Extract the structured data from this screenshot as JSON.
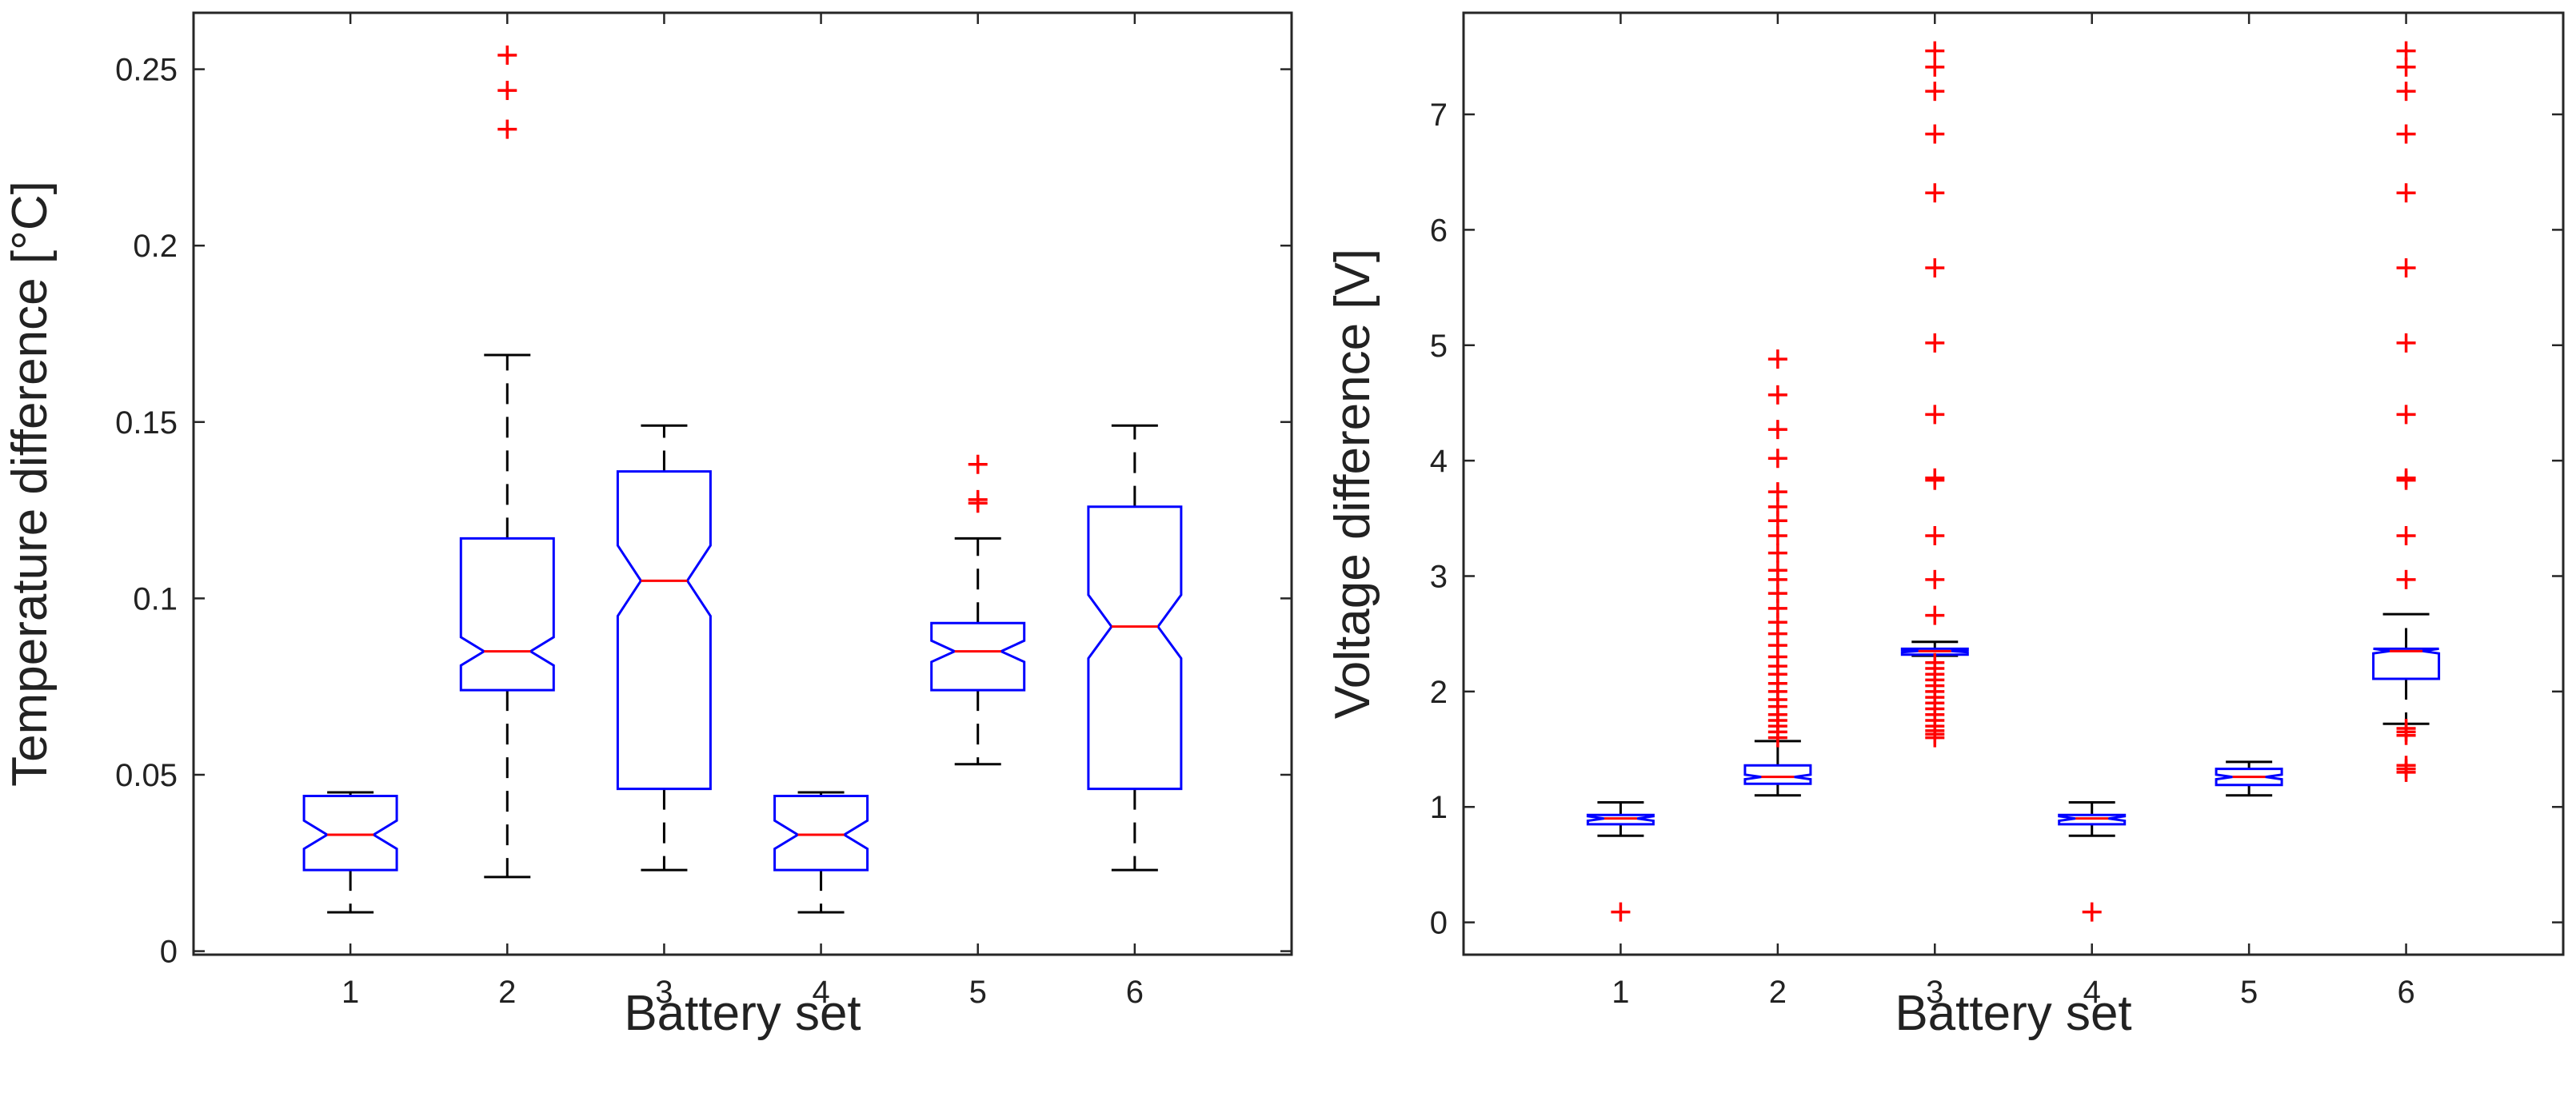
{
  "figure": {
    "background": "#ffffff"
  },
  "colors": {
    "box": "#0000ff",
    "median": "#ff0000",
    "whisker": "#000000",
    "outlier": "#ff0000",
    "axis": "#262626"
  },
  "chart_data": [
    {
      "type": "box",
      "id": "temperature",
      "notched": true,
      "xlabel": "Battery set",
      "ylabel": "Temperature difference [°C]",
      "categories": [
        "1",
        "2",
        "3",
        "4",
        "5",
        "6"
      ],
      "ylim": [
        -0.001,
        0.266
      ],
      "yticks": [
        0,
        0.05,
        0.1,
        0.15,
        0.2,
        0.25
      ],
      "ytick_labels": [
        "0",
        "0.05",
        "0.1",
        "0.15",
        "0.2",
        "0.25"
      ],
      "boxes": [
        {
          "label": "1",
          "whisker_low": 0.011,
          "q1": 0.023,
          "median": 0.033,
          "q3": 0.044,
          "whisker_high": 0.045,
          "notch_low": 0.029,
          "notch_high": 0.037,
          "outliers": []
        },
        {
          "label": "2",
          "whisker_low": 0.021,
          "q1": 0.074,
          "median": 0.085,
          "q3": 0.117,
          "whisker_high": 0.169,
          "notch_low": 0.081,
          "notch_high": 0.089,
          "outliers": [
            0.233,
            0.244,
            0.254
          ]
        },
        {
          "label": "3",
          "whisker_low": 0.023,
          "q1": 0.046,
          "median": 0.105,
          "q3": 0.136,
          "whisker_high": 0.149,
          "notch_low": 0.095,
          "notch_high": 0.115,
          "outliers": []
        },
        {
          "label": "4",
          "whisker_low": 0.011,
          "q1": 0.023,
          "median": 0.033,
          "q3": 0.044,
          "whisker_high": 0.045,
          "notch_low": 0.029,
          "notch_high": 0.037,
          "outliers": []
        },
        {
          "label": "5",
          "whisker_low": 0.053,
          "q1": 0.074,
          "median": 0.085,
          "q3": 0.093,
          "whisker_high": 0.117,
          "notch_low": 0.082,
          "notch_high": 0.088,
          "outliers": [
            0.127,
            0.128,
            0.138
          ]
        },
        {
          "label": "6",
          "whisker_low": 0.023,
          "q1": 0.046,
          "median": 0.092,
          "q3": 0.126,
          "whisker_high": 0.149,
          "notch_low": 0.083,
          "notch_high": 0.101,
          "outliers": []
        }
      ]
    },
    {
      "type": "box",
      "id": "voltage",
      "notched": true,
      "xlabel": "Battery set",
      "ylabel": "Voltage difference [V]",
      "categories": [
        "1",
        "2",
        "3",
        "4",
        "5",
        "6"
      ],
      "ylim": [
        -0.28,
        7.88
      ],
      "yticks": [
        0,
        1,
        2,
        3,
        4,
        5,
        6,
        7
      ],
      "ytick_labels": [
        "0",
        "1",
        "2",
        "3",
        "4",
        "5",
        "6",
        "7"
      ],
      "boxes": [
        {
          "label": "1",
          "whisker_low": 0.75,
          "q1": 0.85,
          "median": 0.9,
          "q3": 0.93,
          "whisker_high": 1.04,
          "notch_low": 0.88,
          "notch_high": 0.92,
          "outliers": [
            0.09
          ]
        },
        {
          "label": "2",
          "whisker_low": 1.1,
          "q1": 1.2,
          "median": 1.26,
          "q3": 1.36,
          "whisker_high": 1.57,
          "notch_low": 1.24,
          "notch_high": 1.28,
          "outliers": [
            1.6,
            1.65,
            1.7,
            1.75,
            1.8,
            1.87,
            1.93,
            2.0,
            2.07,
            2.15,
            2.22,
            2.3,
            2.4,
            2.5,
            2.6,
            2.72,
            2.85,
            2.97,
            3.05,
            3.2,
            3.35,
            3.48,
            3.6,
            3.73,
            4.02,
            4.27,
            4.57,
            4.88
          ]
        },
        {
          "label": "3",
          "whisker_low": 2.31,
          "q1": 2.32,
          "median": 2.35,
          "q3": 2.37,
          "whisker_high": 2.43,
          "notch_low": 2.34,
          "notch_high": 2.36,
          "outliers": [
            1.6,
            1.63,
            1.66,
            1.7,
            1.75,
            1.8,
            1.85,
            1.9,
            1.95,
            2.0,
            2.05,
            2.1,
            2.15,
            2.2,
            2.25,
            2.66,
            2.97,
            3.35,
            3.83,
            3.85,
            4.4,
            5.02,
            5.67,
            6.32,
            6.83,
            7.2,
            7.41,
            7.55
          ]
        },
        {
          "label": "4",
          "whisker_low": 0.75,
          "q1": 0.85,
          "median": 0.9,
          "q3": 0.93,
          "whisker_high": 1.04,
          "notch_low": 0.88,
          "notch_high": 0.92,
          "outliers": [
            0.09
          ]
        },
        {
          "label": "5",
          "whisker_low": 1.1,
          "q1": 1.19,
          "median": 1.26,
          "q3": 1.33,
          "whisker_high": 1.39,
          "notch_low": 1.24,
          "notch_high": 1.28,
          "outliers": []
        },
        {
          "label": "6",
          "whisker_low": 1.72,
          "q1": 2.11,
          "median": 2.35,
          "q3": 2.37,
          "whisker_high": 2.67,
          "notch_low": 2.33,
          "notch_high": 2.37,
          "outliers": [
            1.3,
            1.33,
            1.36,
            1.62,
            1.65,
            1.68,
            2.97,
            3.35,
            3.83,
            3.85,
            4.4,
            5.02,
            5.67,
            6.32,
            6.83,
            7.2,
            7.41,
            7.55
          ]
        }
      ]
    }
  ]
}
